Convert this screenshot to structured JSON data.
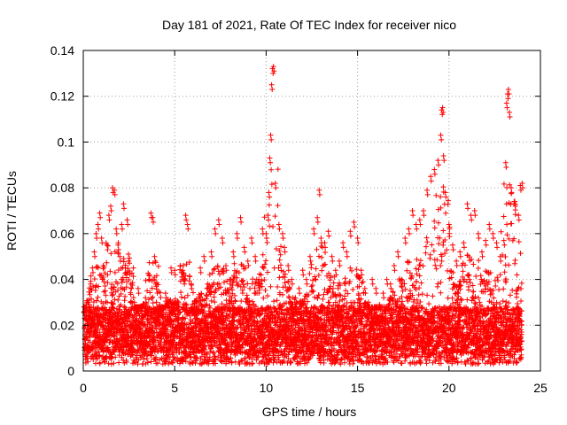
{
  "chart_data": {
    "type": "scatter",
    "title": "Day 181 of 2021, Rate Of TEC Index for receiver nico",
    "xlabel": "GPS time / hours",
    "ylabel": "ROTI / TECUs",
    "xlim": [
      0,
      25
    ],
    "ylim": [
      0,
      0.14
    ],
    "xticks": [
      {
        "value": 0,
        "label": "0"
      },
      {
        "value": 5,
        "label": "5"
      },
      {
        "value": 10,
        "label": "10"
      },
      {
        "value": 15,
        "label": "15"
      },
      {
        "value": 20,
        "label": "20"
      },
      {
        "value": 25,
        "label": "25"
      }
    ],
    "yticks": [
      {
        "value": 0,
        "label": "0"
      },
      {
        "value": 0.02,
        "label": "0.02"
      },
      {
        "value": 0.04,
        "label": "0.04"
      },
      {
        "value": 0.06,
        "label": "0.06"
      },
      {
        "value": 0.08,
        "label": "0.08"
      },
      {
        "value": 0.1,
        "label": "0.1"
      },
      {
        "value": 0.12,
        "label": "0.12"
      },
      {
        "value": 0.14,
        "label": "0.14"
      }
    ],
    "grid": true,
    "marker": "+",
    "color": "#ff0000",
    "series": [
      {
        "name": "ROTI",
        "points": [
          [
            0.1,
            0.016
          ],
          [
            0.2,
            0.022
          ],
          [
            0.3,
            0.031
          ],
          [
            0.4,
            0.038
          ],
          [
            0.5,
            0.045
          ],
          [
            0.6,
            0.052
          ],
          [
            0.7,
            0.06
          ],
          [
            0.8,
            0.064
          ],
          [
            0.9,
            0.069
          ],
          [
            1.0,
            0.058
          ],
          [
            1.1,
            0.041
          ],
          [
            1.2,
            0.035
          ],
          [
            1.3,
            0.055
          ],
          [
            1.4,
            0.068
          ],
          [
            1.5,
            0.072
          ],
          [
            1.6,
            0.08
          ],
          [
            1.7,
            0.079
          ],
          [
            1.8,
            0.062
          ],
          [
            1.9,
            0.055
          ],
          [
            2.0,
            0.05
          ],
          [
            2.1,
            0.064
          ],
          [
            2.2,
            0.073
          ],
          [
            2.3,
            0.045
          ],
          [
            2.4,
            0.066
          ],
          [
            2.6,
            0.038
          ],
          [
            2.8,
            0.03
          ],
          [
            3.0,
            0.036
          ],
          [
            3.2,
            0.026
          ],
          [
            3.4,
            0.032
          ],
          [
            3.6,
            0.042
          ],
          [
            3.7,
            0.069
          ],
          [
            3.8,
            0.067
          ],
          [
            3.9,
            0.05
          ],
          [
            4.0,
            0.03
          ],
          [
            4.2,
            0.026
          ],
          [
            4.5,
            0.034
          ],
          [
            4.8,
            0.045
          ],
          [
            5.0,
            0.044
          ],
          [
            5.2,
            0.03
          ],
          [
            5.5,
            0.04
          ],
          [
            5.6,
            0.068
          ],
          [
            5.7,
            0.064
          ],
          [
            5.9,
            0.038
          ],
          [
            6.2,
            0.028
          ],
          [
            6.4,
            0.045
          ],
          [
            6.6,
            0.05
          ],
          [
            6.8,
            0.038
          ],
          [
            7.0,
            0.052
          ],
          [
            7.2,
            0.062
          ],
          [
            7.4,
            0.066
          ],
          [
            7.6,
            0.058
          ],
          [
            7.8,
            0.046
          ],
          [
            8.0,
            0.04
          ],
          [
            8.2,
            0.052
          ],
          [
            8.4,
            0.06
          ],
          [
            8.6,
            0.067
          ],
          [
            8.8,
            0.054
          ],
          [
            9.0,
            0.048
          ],
          [
            9.2,
            0.058
          ],
          [
            9.4,
            0.05
          ],
          [
            9.6,
            0.04
          ],
          [
            9.8,
            0.062
          ],
          [
            10.0,
            0.06
          ],
          [
            10.1,
            0.068
          ],
          [
            10.15,
            0.078
          ],
          [
            10.2,
            0.093
          ],
          [
            10.25,
            0.103
          ],
          [
            10.3,
            0.125
          ],
          [
            10.35,
            0.132
          ],
          [
            10.4,
            0.133
          ],
          [
            10.5,
            0.082
          ],
          [
            10.7,
            0.064
          ],
          [
            10.9,
            0.06
          ],
          [
            11.0,
            0.054
          ],
          [
            11.2,
            0.046
          ],
          [
            11.4,
            0.04
          ],
          [
            11.6,
            0.032
          ],
          [
            11.8,
            0.036
          ],
          [
            12.0,
            0.044
          ],
          [
            12.2,
            0.04
          ],
          [
            12.4,
            0.05
          ],
          [
            12.6,
            0.062
          ],
          [
            12.8,
            0.067
          ],
          [
            12.9,
            0.079
          ],
          [
            13.0,
            0.058
          ],
          [
            13.2,
            0.056
          ],
          [
            13.4,
            0.061
          ],
          [
            13.6,
            0.05
          ],
          [
            13.8,
            0.044
          ],
          [
            14.0,
            0.048
          ],
          [
            14.2,
            0.056
          ],
          [
            14.4,
            0.052
          ],
          [
            14.6,
            0.061
          ],
          [
            14.8,
            0.065
          ],
          [
            15.0,
            0.058
          ],
          [
            15.2,
            0.044
          ],
          [
            15.4,
            0.036
          ],
          [
            15.6,
            0.03
          ],
          [
            15.8,
            0.04
          ],
          [
            16.0,
            0.036
          ],
          [
            16.2,
            0.029
          ],
          [
            16.4,
            0.034
          ],
          [
            16.6,
            0.04
          ],
          [
            16.8,
            0.038
          ],
          [
            17.0,
            0.046
          ],
          [
            17.2,
            0.052
          ],
          [
            17.4,
            0.04
          ],
          [
            17.6,
            0.058
          ],
          [
            17.8,
            0.062
          ],
          [
            18.0,
            0.07
          ],
          [
            18.2,
            0.064
          ],
          [
            18.4,
            0.066
          ],
          [
            18.6,
            0.07
          ],
          [
            18.8,
            0.079
          ],
          [
            19.0,
            0.085
          ],
          [
            19.2,
            0.088
          ],
          [
            19.4,
            0.092
          ],
          [
            19.55,
            0.103
          ],
          [
            19.6,
            0.114
          ],
          [
            19.65,
            0.115
          ],
          [
            19.7,
            0.094
          ],
          [
            19.8,
            0.078
          ],
          [
            20.0,
            0.064
          ],
          [
            20.2,
            0.055
          ],
          [
            20.4,
            0.048
          ],
          [
            20.6,
            0.052
          ],
          [
            20.8,
            0.056
          ],
          [
            21.0,
            0.073
          ],
          [
            21.2,
            0.068
          ],
          [
            21.4,
            0.07
          ],
          [
            21.6,
            0.06
          ],
          [
            21.8,
            0.052
          ],
          [
            22.0,
            0.057
          ],
          [
            22.2,
            0.064
          ],
          [
            22.4,
            0.06
          ],
          [
            22.6,
            0.056
          ],
          [
            22.8,
            0.05
          ],
          [
            23.0,
            0.057
          ],
          [
            23.1,
            0.091
          ],
          [
            23.15,
            0.117
          ],
          [
            23.2,
            0.121
          ],
          [
            23.25,
            0.123
          ],
          [
            23.3,
            0.113
          ],
          [
            23.4,
            0.08
          ],
          [
            23.6,
            0.074
          ],
          [
            23.8,
            0.068
          ],
          [
            23.9,
            0.081
          ],
          [
            24.0,
            0.082
          ]
        ],
        "base_band": {
          "min": 0.003,
          "typical_low": 0.008,
          "typical_high": 0.028,
          "range_hours": [
            0.05,
            24.0
          ]
        }
      }
    ]
  }
}
